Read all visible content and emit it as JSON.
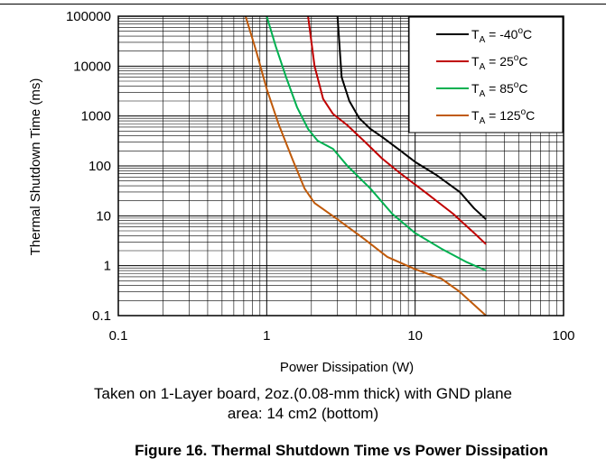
{
  "chart_data": {
    "type": "line",
    "x_scale": "log",
    "y_scale": "log",
    "xlabel": "Power Dissipation (W)",
    "ylabel": "Thermal Shutdown Time (ms)",
    "xlim": [
      0.1,
      100
    ],
    "ylim": [
      0.1,
      100000
    ],
    "x_ticks": [
      "0.1",
      "1",
      "10",
      "100"
    ],
    "y_ticks": [
      "0.1",
      "1",
      "10",
      "100",
      "1000",
      "10000",
      "100000"
    ],
    "grid": true,
    "legend_position": "top-right",
    "series": [
      {
        "label_prefix": "T",
        "label_sub": "A",
        "label_value": " = -40",
        "label_sup": "o",
        "label_unit": "C",
        "color": "#000000",
        "points": [
          [
            3.0,
            100000
          ],
          [
            3.2,
            6000
          ],
          [
            3.6,
            2000
          ],
          [
            4.2,
            900
          ],
          [
            5.0,
            550
          ],
          [
            6.0,
            380
          ],
          [
            8.0,
            200
          ],
          [
            10.0,
            120
          ],
          [
            14.0,
            65
          ],
          [
            20.0,
            30
          ],
          [
            25.0,
            14
          ],
          [
            30.0,
            8.5
          ]
        ]
      },
      {
        "label_prefix": "T",
        "label_sub": "A",
        "label_value": " = 25",
        "label_sup": "o",
        "label_unit": "C",
        "color": "#c00000",
        "points": [
          [
            1.9,
            100000
          ],
          [
            2.1,
            10000
          ],
          [
            2.4,
            2200
          ],
          [
            2.8,
            1100
          ],
          [
            3.5,
            650
          ],
          [
            4.5,
            320
          ],
          [
            6.0,
            140
          ],
          [
            8.0,
            70
          ],
          [
            12.0,
            28
          ],
          [
            18.0,
            11
          ],
          [
            25.0,
            4.5
          ],
          [
            30.0,
            2.7
          ]
        ]
      },
      {
        "label_prefix": "T",
        "label_sub": "A",
        "label_value": " = 85",
        "label_sup": "o",
        "label_unit": "C",
        "color": "#00b050",
        "points": [
          [
            1.0,
            100000
          ],
          [
            1.15,
            25000
          ],
          [
            1.35,
            6000
          ],
          [
            1.6,
            1500
          ],
          [
            1.9,
            550
          ],
          [
            2.2,
            320
          ],
          [
            2.8,
            220
          ],
          [
            3.5,
            100
          ],
          [
            5.0,
            35
          ],
          [
            7.0,
            11
          ],
          [
            10.0,
            4.5
          ],
          [
            15.0,
            2.2
          ],
          [
            22.0,
            1.2
          ],
          [
            30.0,
            0.8
          ]
        ]
      },
      {
        "label_prefix": "T",
        "label_sub": "A",
        "label_value": " = 125",
        "label_sup": "o",
        "label_unit": "C",
        "color": "#c05a0a",
        "points": [
          [
            0.72,
            100000
          ],
          [
            0.85,
            20000
          ],
          [
            1.0,
            3500
          ],
          [
            1.2,
            700
          ],
          [
            1.5,
            130
          ],
          [
            1.8,
            35
          ],
          [
            2.1,
            18
          ],
          [
            3.0,
            8.5
          ],
          [
            4.5,
            3.5
          ],
          [
            6.5,
            1.5
          ],
          [
            10.0,
            0.85
          ],
          [
            15.0,
            0.55
          ],
          [
            20.0,
            0.3
          ],
          [
            30.0,
            0.1
          ]
        ]
      }
    ]
  },
  "caption": {
    "line1": "Taken on 1-Layer board, 2oz.(0.08-mm thick) with GND plane",
    "line2": "area: 14 cm2 (bottom)"
  },
  "figure_title": "Figure 16. Thermal Shutdown Time vs Power Dissipation"
}
